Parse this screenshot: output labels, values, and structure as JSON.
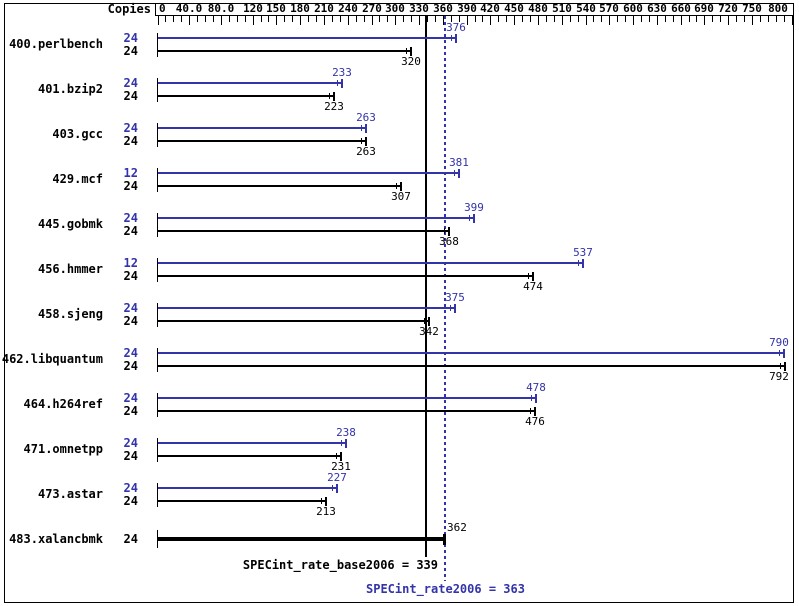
{
  "header": {
    "copies_label": "Copies"
  },
  "colors": {
    "peak_blue": "#3333AA",
    "base_black": "#000000",
    "background": "#FFFFFF",
    "frame": "#000000"
  },
  "chart_data": {
    "type": "bar",
    "orientation": "horizontal",
    "xlabel": "",
    "ylabel": "Copies",
    "xlim": [
      0,
      800
    ],
    "grid": false,
    "minor_tick_step": 10,
    "x_ticks": [
      {
        "value": 0,
        "label": "0"
      },
      {
        "value": 40,
        "label": "40.0"
      },
      {
        "value": 80,
        "label": "80.0"
      },
      {
        "value": 120,
        "label": "120"
      },
      {
        "value": 150,
        "label": "150"
      },
      {
        "value": 180,
        "label": "180"
      },
      {
        "value": 210,
        "label": "210"
      },
      {
        "value": 240,
        "label": "240"
      },
      {
        "value": 270,
        "label": "270"
      },
      {
        "value": 300,
        "label": "300"
      },
      {
        "value": 330,
        "label": "330"
      },
      {
        "value": 360,
        "label": "360"
      },
      {
        "value": 390,
        "label": "390"
      },
      {
        "value": 420,
        "label": "420"
      },
      {
        "value": 450,
        "label": "450"
      },
      {
        "value": 480,
        "label": "480"
      },
      {
        "value": 510,
        "label": "510"
      },
      {
        "value": 540,
        "label": "540"
      },
      {
        "value": 570,
        "label": "570"
      },
      {
        "value": 600,
        "label": "600"
      },
      {
        "value": 630,
        "label": "630"
      },
      {
        "value": 660,
        "label": "660"
      },
      {
        "value": 690,
        "label": "690"
      },
      {
        "value": 720,
        "label": "720"
      },
      {
        "value": 750,
        "label": "750"
      },
      {
        "value": 800,
        "label": "800"
      }
    ],
    "rows": [
      {
        "name": "400.perlbench",
        "bars": [
          {
            "series": "peak",
            "copies": "24",
            "value": 376,
            "label_pos": "above"
          },
          {
            "series": "base",
            "copies": "24",
            "value": 320,
            "label_pos": "below"
          }
        ]
      },
      {
        "name": "401.bzip2",
        "bars": [
          {
            "series": "peak",
            "copies": "24",
            "value": 233,
            "label_pos": "above"
          },
          {
            "series": "base",
            "copies": "24",
            "value": 223,
            "label_pos": "below"
          }
        ]
      },
      {
        "name": "403.gcc",
        "bars": [
          {
            "series": "peak",
            "copies": "24",
            "value": 263,
            "label_pos": "above"
          },
          {
            "series": "base",
            "copies": "24",
            "value": 263,
            "label_pos": "below"
          }
        ]
      },
      {
        "name": "429.mcf",
        "bars": [
          {
            "series": "peak",
            "copies": "12",
            "value": 381,
            "label_pos": "above"
          },
          {
            "series": "base",
            "copies": "24",
            "value": 307,
            "label_pos": "below"
          }
        ]
      },
      {
        "name": "445.gobmk",
        "bars": [
          {
            "series": "peak",
            "copies": "24",
            "value": 399,
            "label_pos": "above"
          },
          {
            "series": "base",
            "copies": "24",
            "value": 368,
            "label_pos": "below"
          }
        ]
      },
      {
        "name": "456.hmmer",
        "bars": [
          {
            "series": "peak",
            "copies": "12",
            "value": 537,
            "label_pos": "above"
          },
          {
            "series": "base",
            "copies": "24",
            "value": 474,
            "label_pos": "below"
          }
        ]
      },
      {
        "name": "458.sjeng",
        "bars": [
          {
            "series": "peak",
            "copies": "24",
            "value": 375,
            "label_pos": "above"
          },
          {
            "series": "base",
            "copies": "24",
            "value": 342,
            "label_pos": "below"
          }
        ]
      },
      {
        "name": "462.libquantum",
        "bars": [
          {
            "series": "peak",
            "copies": "24",
            "value": 790,
            "label_pos": "above"
          },
          {
            "series": "base",
            "copies": "24",
            "value": 792,
            "label_pos": "below"
          }
        ]
      },
      {
        "name": "464.h264ref",
        "bars": [
          {
            "series": "peak",
            "copies": "24",
            "value": 478,
            "label_pos": "above"
          },
          {
            "series": "base",
            "copies": "24",
            "value": 476,
            "label_pos": "below"
          }
        ]
      },
      {
        "name": "471.omnetpp",
        "bars": [
          {
            "series": "peak",
            "copies": "24",
            "value": 238,
            "label_pos": "above"
          },
          {
            "series": "base",
            "copies": "24",
            "value": 231,
            "label_pos": "below"
          }
        ]
      },
      {
        "name": "473.astar",
        "bars": [
          {
            "series": "peak",
            "copies": "24",
            "value": 227,
            "label_pos": "above"
          },
          {
            "series": "base",
            "copies": "24",
            "value": 213,
            "label_pos": "below"
          }
        ]
      },
      {
        "name": "483.xalancbmk",
        "bars": [
          {
            "series": "base",
            "copies": "24",
            "value": 362,
            "label_pos": "above-right",
            "thick": true
          }
        ]
      }
    ],
    "reference_lines": [
      {
        "name": "base_mean",
        "label": "SPECint_rate_base2006 = 339",
        "value": 339,
        "style": "solid",
        "series": "base"
      },
      {
        "name": "peak_mean",
        "label": "SPECint_rate2006 = 363",
        "value": 363,
        "style": "dotted",
        "series": "peak"
      }
    ],
    "legend_position": "none",
    "series_names": [
      "SPECint_rate2006 (peak, blue)",
      "SPECint_rate_base2006 (base, black)"
    ]
  }
}
